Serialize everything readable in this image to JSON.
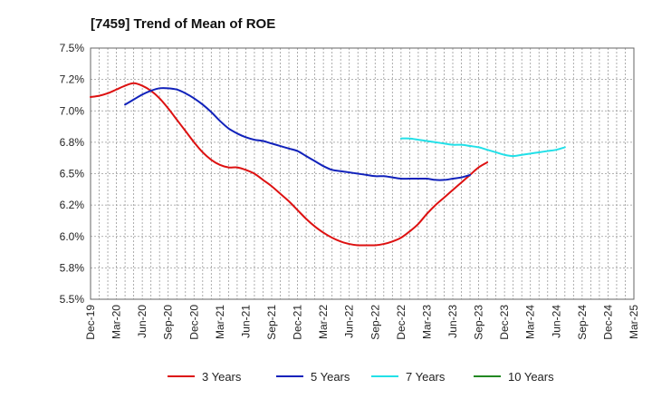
{
  "chart_data": {
    "type": "line",
    "title": "[7459]  Trend of Mean of ROE",
    "xlabel": "",
    "ylabel": "",
    "ylim": [
      5.5,
      7.5
    ],
    "grid": true,
    "legend_position": "bottom",
    "x_tick_labels": [
      "Dec-19",
      "Mar-20",
      "Jun-20",
      "Sep-20",
      "Dec-20",
      "Mar-21",
      "Jun-21",
      "Sep-21",
      "Dec-21",
      "Mar-22",
      "Jun-22",
      "Sep-22",
      "Dec-22",
      "Mar-23",
      "Jun-23",
      "Sep-23",
      "Dec-23",
      "Mar-24",
      "Jun-24",
      "Sep-24",
      "Dec-24",
      "Mar-25"
    ],
    "y_tick_values": [
      5.5,
      5.75,
      6.0,
      6.25,
      6.5,
      6.75,
      7.0,
      7.25,
      7.5
    ],
    "y_tick_labels": [
      "5.5%",
      "5.8%",
      "6.0%",
      "6.2%",
      "6.5%",
      "6.8%",
      "7.0%",
      "7.2%",
      "7.5%"
    ],
    "series": [
      {
        "name": "3 Years",
        "color": "#dd1111",
        "start_index": 0,
        "values": [
          7.11,
          7.12,
          7.14,
          7.17,
          7.2,
          7.22,
          7.2,
          7.16,
          7.1,
          7.02,
          6.93,
          6.84,
          6.75,
          6.67,
          6.61,
          6.57,
          6.55,
          6.55,
          6.53,
          6.5,
          6.45,
          6.4,
          6.34,
          6.28,
          6.21,
          6.14,
          6.08,
          6.03,
          5.99,
          5.96,
          5.94,
          5.93,
          5.93,
          5.93,
          5.94,
          5.96,
          5.99,
          6.04,
          6.1,
          6.18,
          6.25,
          6.31,
          6.37,
          6.43,
          6.49,
          6.55,
          6.59
        ]
      },
      {
        "name": "5 Years",
        "color": "#1122bb",
        "start_index": 4,
        "values": [
          7.05,
          7.09,
          7.13,
          7.16,
          7.18,
          7.18,
          7.17,
          7.14,
          7.1,
          7.05,
          6.99,
          6.92,
          6.86,
          6.82,
          6.79,
          6.77,
          6.76,
          6.74,
          6.72,
          6.7,
          6.68,
          6.64,
          6.6,
          6.56,
          6.53,
          6.52,
          6.51,
          6.5,
          6.49,
          6.48,
          6.48,
          6.47,
          6.46,
          6.46,
          6.46,
          6.46,
          6.45,
          6.45,
          6.46,
          6.47,
          6.49
        ]
      },
      {
        "name": "7 Years",
        "color": "#22e0e8",
        "start_index": 36,
        "values": [
          6.78,
          6.78,
          6.77,
          6.76,
          6.75,
          6.74,
          6.73,
          6.73,
          6.72,
          6.71,
          6.69,
          6.67,
          6.65,
          6.64,
          6.65,
          6.66,
          6.67,
          6.68,
          6.69,
          6.71
        ]
      },
      {
        "name": "10 Years",
        "color": "#228822",
        "start_index": 0,
        "values": []
      }
    ]
  }
}
